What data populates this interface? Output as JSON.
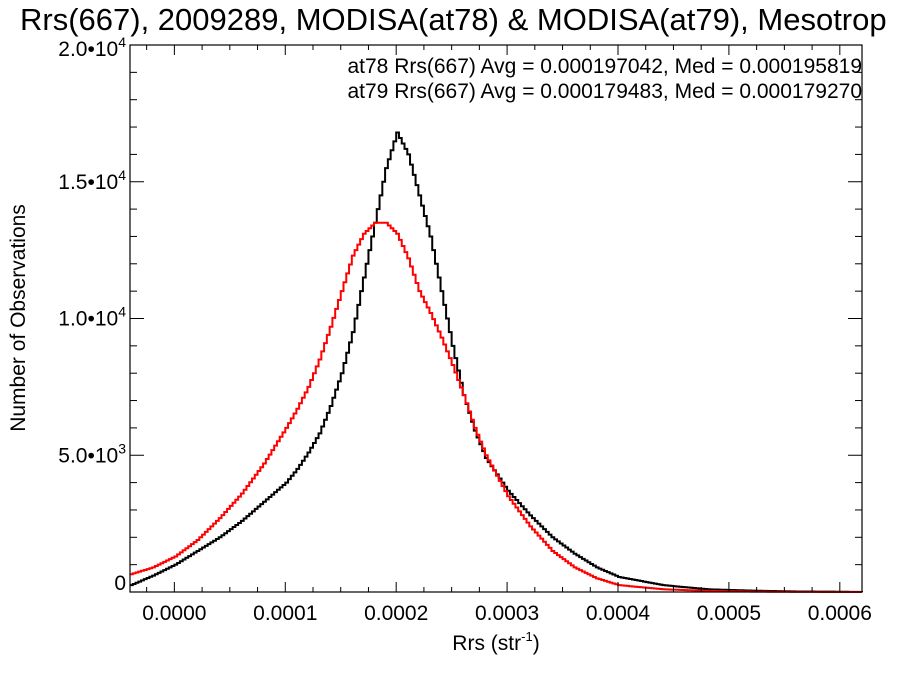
{
  "chart_data": {
    "type": "line",
    "title": "Rrs(667), 2009289, MODISA(at78) & MODISA(at79), Mesotrop",
    "xlabel": "Rrs (str",
    "xlabel_exponent": "-1",
    "xlabel_close": ")",
    "ylabel": "Number of Observations",
    "xlim": [
      -4e-05,
      0.00062
    ],
    "ylim": [
      0,
      20000
    ],
    "x_ticks": [
      {
        "value": 0.0,
        "label": "0.0000"
      },
      {
        "value": 0.0001,
        "label": "0.0001"
      },
      {
        "value": 0.0002,
        "label": "0.0002"
      },
      {
        "value": 0.0003,
        "label": "0.0003"
      },
      {
        "value": 0.0004,
        "label": "0.0004"
      },
      {
        "value": 0.0005,
        "label": "0.0005"
      },
      {
        "value": 0.0006,
        "label": "0.0006"
      }
    ],
    "y_ticks": [
      {
        "value": 0,
        "mantissa": "0",
        "exponent": ""
      },
      {
        "value": 5000,
        "mantissa": "5.0•10",
        "exponent": "3"
      },
      {
        "value": 10000,
        "mantissa": "1.0•10",
        "exponent": "4"
      },
      {
        "value": 15000,
        "mantissa": "1.5•10",
        "exponent": "4"
      },
      {
        "value": 20000,
        "mantissa": "2.0•10",
        "exponent": "4"
      }
    ],
    "annotations": [
      {
        "text": "at78 Rrs(667) Avg = 0.000197042, Med = 0.000195819",
        "color": "#000000"
      },
      {
        "text": "at79 Rrs(667) Avg = 0.000179483, Med = 0.000179270",
        "color": "#ff0000"
      }
    ],
    "grid": false,
    "series": [
      {
        "color": "#000000",
        "x": [
          -4e-05,
          -2e-05,
          0.0,
          2e-05,
          4e-05,
          6e-05,
          8e-05,
          0.0001,
          0.00011,
          0.00012,
          0.00013,
          0.00014,
          0.00015,
          0.00016,
          0.00017,
          0.00018,
          0.00019,
          0.0002,
          0.00021,
          0.00022,
          0.00023,
          0.00024,
          0.00025,
          0.00026,
          0.00027,
          0.00028,
          0.0003,
          0.00032,
          0.00034,
          0.00036,
          0.00038,
          0.0004,
          0.00044,
          0.00048,
          0.00052,
          0.00056,
          0.0006,
          0.00062
        ],
        "y": [
          250,
          600,
          1000,
          1500,
          2000,
          2600,
          3300,
          4000,
          4500,
          5100,
          5800,
          6800,
          8000,
          9500,
          11500,
          13500,
          15500,
          16800,
          16000,
          14500,
          13000,
          11000,
          9000,
          7200,
          5900,
          4900,
          3700,
          2800,
          2000,
          1400,
          900,
          550,
          250,
          100,
          50,
          20,
          10,
          0
        ]
      },
      {
        "color": "#ff0000",
        "x": [
          -4e-05,
          -2e-05,
          0.0,
          2e-05,
          4e-05,
          6e-05,
          8e-05,
          0.0001,
          0.00011,
          0.00012,
          0.00013,
          0.00014,
          0.00015,
          0.00016,
          0.00017,
          0.00018,
          0.00019,
          0.0002,
          0.00021,
          0.00022,
          0.00023,
          0.00024,
          0.00025,
          0.00026,
          0.00027,
          0.00028,
          0.0003,
          0.00032,
          0.00034,
          0.00036,
          0.00038,
          0.0004,
          0.00044,
          0.00048,
          0.00052,
          0.00056,
          0.0006,
          0.00062
        ],
        "y": [
          650,
          900,
          1300,
          1900,
          2700,
          3600,
          4700,
          6000,
          6700,
          7500,
          8500,
          9700,
          11000,
          12300,
          13100,
          13500,
          13500,
          13100,
          12200,
          11000,
          10200,
          9300,
          8300,
          7200,
          6000,
          5000,
          3500,
          2400,
          1500,
          900,
          500,
          250,
          100,
          40,
          15,
          5,
          0,
          0
        ]
      }
    ]
  }
}
